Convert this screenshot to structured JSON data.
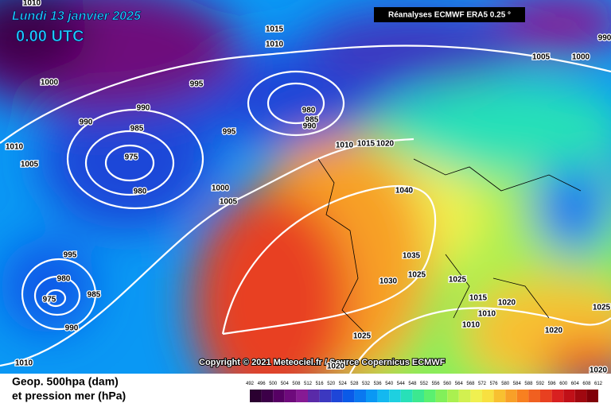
{
  "header": {
    "date": "Lundi 13 janvier 2025",
    "time": "0.00 UTC",
    "source_box": "Réanalyses ECMWF ERA5 0.25 °"
  },
  "copyright": "Copyright © 2021 Meteociel.fr / Source Copernicus ECMWF",
  "caption": {
    "line1": "Geop. 500hpa (dam)",
    "line2": "et pression mer (hPa)"
  },
  "isobar_labels": [
    "1010",
    "1015",
    "1010",
    "990",
    "1005",
    "1000",
    "1000",
    "995",
    "990",
    "980",
    "985",
    "990",
    "990",
    "985",
    "995",
    "1010",
    "1010",
    "1015",
    "1020",
    "1005",
    "975",
    "980",
    "1000",
    "1005",
    "1040",
    "995",
    "1035",
    "1025",
    "1025",
    "980",
    "1030",
    "975",
    "985",
    "1015",
    "1020",
    "1010",
    "990",
    "1010",
    "1025",
    "1020",
    "1025",
    "1010",
    "1020",
    "1020"
  ],
  "scale": {
    "ticks": [
      492,
      496,
      500,
      504,
      508,
      512,
      516,
      520,
      524,
      528,
      532,
      536,
      540,
      544,
      548,
      552,
      556,
      560,
      564,
      568,
      572,
      576,
      580,
      584,
      588,
      592,
      596,
      600,
      604,
      608,
      612
    ],
    "colors": [
      "#2a0030",
      "#3c0048",
      "#560064",
      "#6e0a7c",
      "#861a94",
      "#5a2aa8",
      "#3c38c0",
      "#1e46d8",
      "#0a5ae8",
      "#0a78f0",
      "#0a98f4",
      "#14b8f0",
      "#1ed0e0",
      "#28e0b8",
      "#3ce890",
      "#5af070",
      "#82f05a",
      "#aaf050",
      "#d2f050",
      "#f0f050",
      "#f8e040",
      "#f8c030",
      "#f8a028",
      "#f88020",
      "#f06020",
      "#e84020",
      "#d82020",
      "#c01018",
      "#a00810",
      "#800008"
    ]
  }
}
